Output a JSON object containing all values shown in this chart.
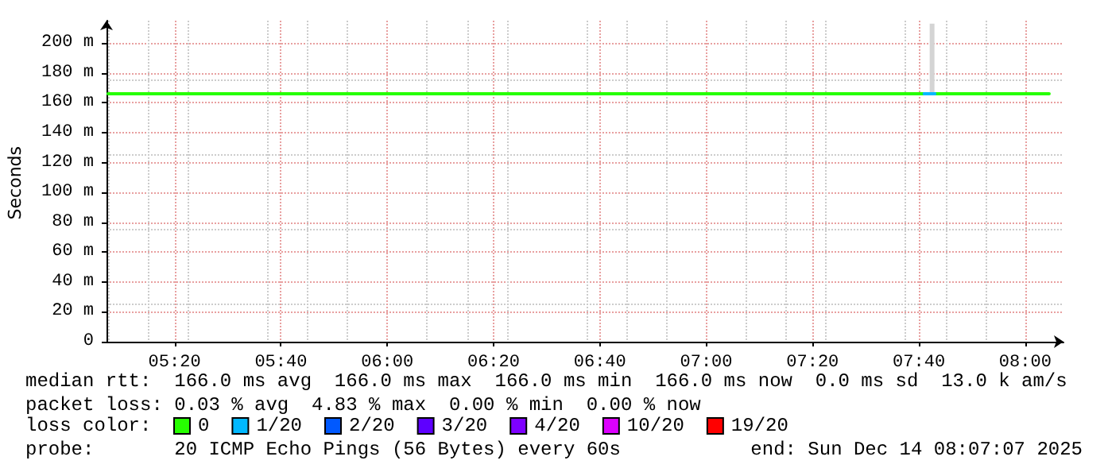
{
  "chart_data": {
    "type": "line",
    "ylabel": "Seconds",
    "legend_title": "loss color:",
    "legend": "bottom",
    "grid": true,
    "xlim": [
      5.12,
      8.12
    ],
    "xticks": [
      {
        "value": 5.3333,
        "label": "05:20"
      },
      {
        "value": 5.6667,
        "label": "05:40"
      },
      {
        "value": 6,
        "label": "06:00"
      },
      {
        "value": 6.3333,
        "label": "06:20"
      },
      {
        "value": 6.6667,
        "label": "06:40"
      },
      {
        "value": 7,
        "label": "07:00"
      },
      {
        "value": 7.3333,
        "label": "07:20"
      },
      {
        "value": 7.6667,
        "label": "07:40"
      },
      {
        "value": 8,
        "label": "08:00"
      }
    ],
    "ylim": [
      0,
      215
    ],
    "yticks": [
      0,
      {
        "value": 20,
        "label": "20 m"
      },
      {
        "value": 40,
        "label": "40 m"
      },
      {
        "value": 60,
        "label": "60 m"
      },
      {
        "value": 80,
        "label": "80 m"
      },
      {
        "value": 100,
        "label": "100 m"
      },
      {
        "value": 120,
        "label": "120 m"
      },
      {
        "value": 140,
        "label": "140 m"
      },
      {
        "value": 160,
        "label": "160 m"
      },
      {
        "value": 180,
        "label": "180 m"
      },
      {
        "value": 200,
        "label": "200 m"
      }
    ],
    "series": [
      {
        "type": "bar",
        "color": "#d4d4d4",
        "x": [
          7.708
        ],
        "base": [
          166
        ],
        "values": [
          47
        ]
      },
      {
        "name": "0",
        "color": "#26ff00",
        "x": [
          5.125,
          7.683,
          7.7,
          7.717,
          8.075
        ],
        "values": [
          166,
          166,
          null,
          166,
          166
        ]
      },
      {
        "name": "1/20",
        "color": "#00b8ff",
        "x": [
          7.683,
          7.717
        ],
        "values": [
          166,
          166
        ]
      },
      {
        "name": "2/20",
        "color": "#0059ff"
      },
      {
        "name": "3/20",
        "color": "#5e00ff"
      },
      {
        "name": "4/20",
        "color": "#7e00ff"
      },
      {
        "name": "10/20",
        "color": "#dd00ff"
      },
      {
        "name": "19/20",
        "color": "#ff0000"
      }
    ],
    "annotations": [
      "median rtt:  166.0 ms avg  166.0 ms max  166.0 ms min  166.0 ms now  0.0 ms sd  13.0 k am/s",
      "packet loss: 0.03 % avg  4.83 % max  0.00 % min  0.00 % now",
      "probe:       20 ICMP Echo Pings (56 Bytes) every 60s",
      "end: Sun Dec 14 08:07:07 2025"
    ]
  }
}
